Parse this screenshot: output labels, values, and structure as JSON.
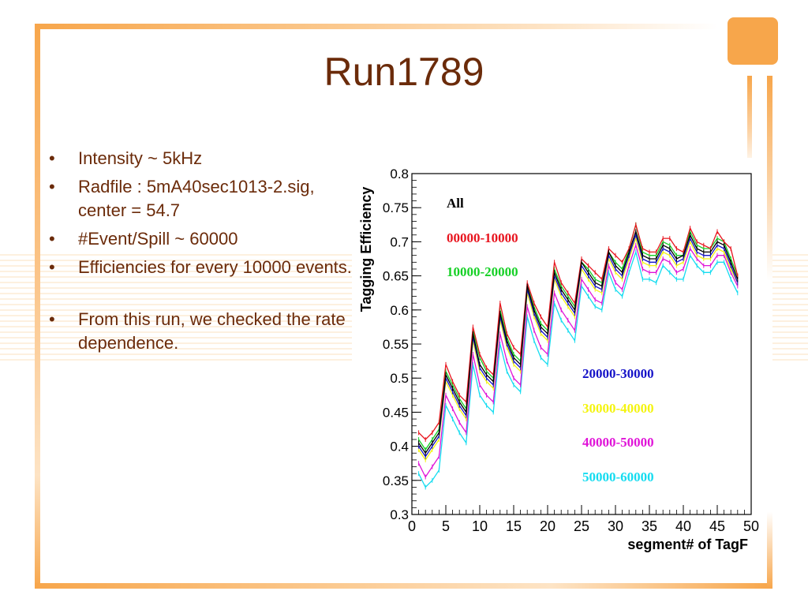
{
  "slide": {
    "title": "Run1789",
    "bullets": [
      {
        "text": "Intensity ~ 5kHz"
      },
      {
        "text": "Radfile : 5mA40sec1013-2.sig, center = 54.7"
      },
      {
        "text": "#Event/Spill ~ 60000"
      },
      {
        "text": "Efficiencies for every 10000 events."
      },
      {
        "text": "From this run, we checked the rate dependence."
      }
    ],
    "bullet_symbol": "•",
    "accent_color": "#f7a64b",
    "text_color": "#6b2b0a"
  },
  "chart_data": {
    "type": "line",
    "xlabel": "segment# of TagF",
    "ylabel": "Tagging Efficiency",
    "xlim": [
      0,
      50
    ],
    "ylim": [
      0.3,
      0.8
    ],
    "x_ticks": [
      "0",
      "5",
      "10",
      "15",
      "20",
      "25",
      "30",
      "35",
      "40",
      "45",
      "50"
    ],
    "y_ticks": [
      "0.3",
      "0.35",
      "0.4",
      "0.45",
      "0.5",
      "0.55",
      "0.6",
      "0.65",
      "0.7",
      "0.75",
      "0.8"
    ],
    "x": [
      1,
      2,
      3,
      4,
      5,
      6,
      7,
      8,
      9,
      10,
      11,
      12,
      13,
      14,
      15,
      16,
      17,
      18,
      19,
      20,
      21,
      22,
      23,
      24,
      25,
      26,
      27,
      28,
      29,
      30,
      31,
      32,
      33,
      34,
      35,
      36,
      37,
      38,
      39,
      40,
      41,
      42,
      43,
      44,
      45,
      46,
      47,
      48
    ],
    "series": [
      {
        "name": "All",
        "color": "#000000",
        "values": [
          0.405,
          0.39,
          0.405,
          0.42,
          0.505,
          0.485,
          0.465,
          0.45,
          0.565,
          0.52,
          0.505,
          0.495,
          0.595,
          0.555,
          0.53,
          0.52,
          0.635,
          0.6,
          0.575,
          0.565,
          0.655,
          0.63,
          0.615,
          0.6,
          0.67,
          0.655,
          0.64,
          0.635,
          0.685,
          0.665,
          0.655,
          0.685,
          0.715,
          0.68,
          0.675,
          0.675,
          0.695,
          0.69,
          0.675,
          0.68,
          0.71,
          0.69,
          0.685,
          0.685,
          0.7,
          0.695,
          0.67,
          0.645
        ]
      },
      {
        "name": "00000-10000",
        "color": "#e8141e",
        "values": [
          0.42,
          0.41,
          0.42,
          0.435,
          0.52,
          0.495,
          0.475,
          0.465,
          0.575,
          0.535,
          0.515,
          0.505,
          0.61,
          0.565,
          0.545,
          0.535,
          0.64,
          0.61,
          0.59,
          0.575,
          0.67,
          0.64,
          0.625,
          0.61,
          0.675,
          0.665,
          0.655,
          0.645,
          0.69,
          0.68,
          0.67,
          0.69,
          0.725,
          0.69,
          0.685,
          0.685,
          0.705,
          0.705,
          0.69,
          0.685,
          0.72,
          0.7,
          0.695,
          0.69,
          0.715,
          0.7,
          0.69,
          0.65
        ]
      },
      {
        "name": "10000-20000",
        "color": "#15d025",
        "values": [
          0.41,
          0.395,
          0.41,
          0.425,
          0.51,
          0.49,
          0.47,
          0.455,
          0.57,
          0.53,
          0.51,
          0.5,
          0.6,
          0.56,
          0.535,
          0.525,
          0.635,
          0.605,
          0.58,
          0.57,
          0.66,
          0.635,
          0.62,
          0.605,
          0.67,
          0.66,
          0.645,
          0.64,
          0.685,
          0.67,
          0.66,
          0.69,
          0.725,
          0.685,
          0.68,
          0.68,
          0.7,
          0.695,
          0.68,
          0.68,
          0.715,
          0.695,
          0.69,
          0.69,
          0.705,
          0.7,
          0.675,
          0.65
        ]
      },
      {
        "name": "20000-30000",
        "color": "#1512c8",
        "values": [
          0.4,
          0.385,
          0.4,
          0.415,
          0.5,
          0.48,
          0.46,
          0.445,
          0.56,
          0.515,
          0.5,
          0.49,
          0.59,
          0.55,
          0.525,
          0.515,
          0.63,
          0.595,
          0.57,
          0.56,
          0.65,
          0.625,
          0.61,
          0.595,
          0.665,
          0.65,
          0.635,
          0.63,
          0.68,
          0.66,
          0.65,
          0.68,
          0.71,
          0.675,
          0.67,
          0.67,
          0.69,
          0.685,
          0.67,
          0.675,
          0.705,
          0.685,
          0.68,
          0.68,
          0.695,
          0.69,
          0.665,
          0.64
        ]
      },
      {
        "name": "30000-40000",
        "color": "#f4f410",
        "values": [
          0.395,
          0.38,
          0.395,
          0.41,
          0.495,
          0.475,
          0.455,
          0.44,
          0.555,
          0.51,
          0.495,
          0.485,
          0.585,
          0.545,
          0.52,
          0.51,
          0.625,
          0.59,
          0.565,
          0.555,
          0.645,
          0.62,
          0.605,
          0.59,
          0.66,
          0.645,
          0.63,
          0.625,
          0.675,
          0.655,
          0.645,
          0.675,
          0.705,
          0.67,
          0.665,
          0.665,
          0.685,
          0.68,
          0.665,
          0.67,
          0.7,
          0.68,
          0.675,
          0.675,
          0.69,
          0.685,
          0.66,
          0.64
        ]
      },
      {
        "name": "40000-50000",
        "color": "#e014d8",
        "values": [
          0.375,
          0.355,
          0.37,
          0.385,
          0.475,
          0.455,
          0.435,
          0.42,
          0.535,
          0.49,
          0.475,
          0.465,
          0.565,
          0.525,
          0.5,
          0.49,
          0.605,
          0.57,
          0.545,
          0.535,
          0.625,
          0.6,
          0.585,
          0.57,
          0.645,
          0.63,
          0.615,
          0.61,
          0.665,
          0.64,
          0.63,
          0.665,
          0.695,
          0.66,
          0.655,
          0.655,
          0.675,
          0.67,
          0.655,
          0.66,
          0.69,
          0.675,
          0.665,
          0.665,
          0.68,
          0.68,
          0.655,
          0.635
        ]
      },
      {
        "name": "50000-60000",
        "color": "#14dcf0",
        "values": [
          0.36,
          0.34,
          0.35,
          0.365,
          0.46,
          0.44,
          0.42,
          0.405,
          0.52,
          0.475,
          0.46,
          0.45,
          0.55,
          0.51,
          0.49,
          0.48,
          0.59,
          0.555,
          0.53,
          0.52,
          0.61,
          0.585,
          0.57,
          0.555,
          0.635,
          0.62,
          0.605,
          0.6,
          0.655,
          0.63,
          0.62,
          0.655,
          0.685,
          0.645,
          0.645,
          0.64,
          0.665,
          0.655,
          0.645,
          0.645,
          0.68,
          0.665,
          0.655,
          0.655,
          0.67,
          0.67,
          0.645,
          0.625
        ]
      }
    ]
  }
}
